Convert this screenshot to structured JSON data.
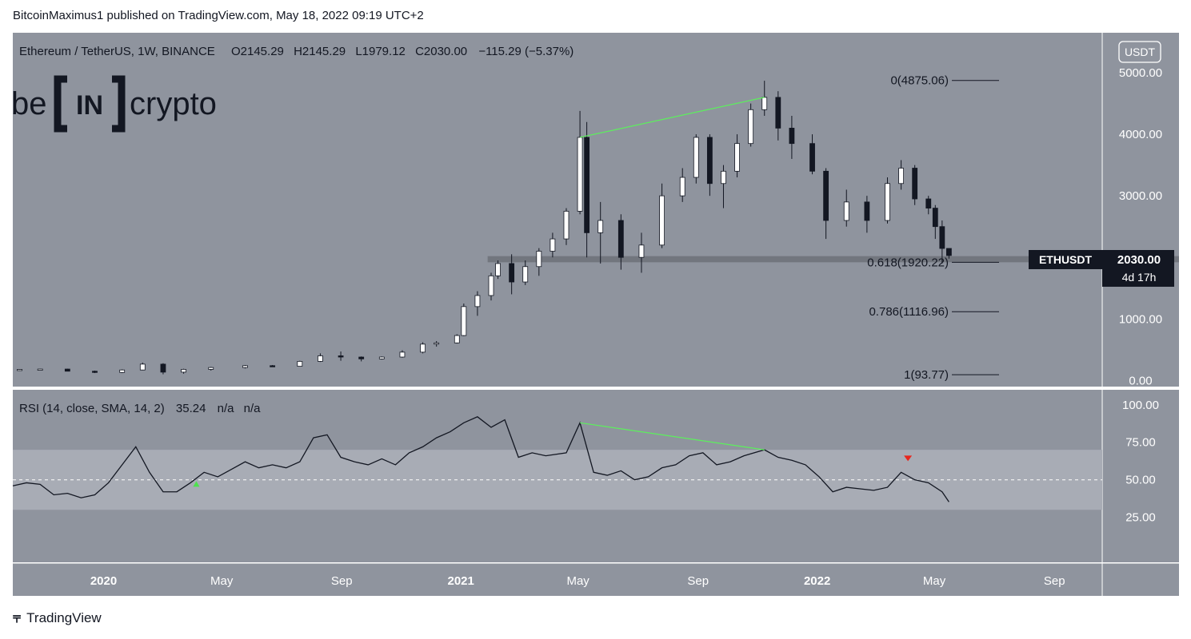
{
  "publisher_line": "BitcoinMaximus1 published on TradingView.com, May 18, 2022 09:19 UTC+2",
  "legend": {
    "symbol": "Ethereum / TetherUS, 1W, BINANCE",
    "o_label": "O",
    "o_value": "2145.29",
    "h_label": "H",
    "h_value": "2145.29",
    "l_label": "L",
    "l_value": "1979.12",
    "c_label": "C",
    "c_value": "2030.00",
    "change": "−115.29 (−5.37%)"
  },
  "watermark": {
    "be": "be",
    "in": "IN",
    "crypto": "crypto"
  },
  "currency_button": "USDT",
  "price_tag": {
    "symbol": "ETHUSDT",
    "price": "2030.00",
    "countdown": "4d 17h"
  },
  "footer": {
    "brand": "TradingView",
    "logo_icon": "tradingview-logo-icon"
  },
  "colors": {
    "panel_bg": "#8f949e",
    "band_bg": "#a8acb5",
    "up": "#ffffff",
    "down": "#131722",
    "divergence": "#5cf05c",
    "signal_down": "#e8271e",
    "signal_up": "#4de34d"
  },
  "chart_data": [
    {
      "type": "candlestick",
      "title": "Ethereum / TetherUS, 1W, BINANCE",
      "x_tick_labels": [
        "2020",
        "May",
        "Sep",
        "2021",
        "May",
        "Sep",
        "2022",
        "May",
        "Sep"
      ],
      "x_tick_dates": [
        "2020-01-01",
        "2020-05-01",
        "2020-09-01",
        "2021-01-01",
        "2021-05-01",
        "2021-09-01",
        "2022-01-01",
        "2022-05-01",
        "2022-09-01"
      ],
      "x_range": [
        "2019-09-30",
        "2022-10-20"
      ],
      "y_tick_labels": [
        "5000.00",
        "4000.00",
        "3000.00",
        "1000.00",
        "0.00"
      ],
      "y_ticks": [
        5000,
        4000,
        3000,
        1000,
        0
      ],
      "ylim": [
        -100,
        5650
      ],
      "fib_levels": [
        {
          "label": "0(4875.06)",
          "value": 4875.06
        },
        {
          "label": "0.618(1920.22)",
          "value": 1920.22
        },
        {
          "label": "0.786(1116.96)",
          "value": 1116.96
        },
        {
          "label": "1(93.77)",
          "value": 93.77
        }
      ],
      "support_zone": [
        1920,
        2020
      ],
      "candles": [
        [
          "2019-10-07",
          175,
          185,
          165,
          180
        ],
        [
          "2019-10-28",
          180,
          190,
          175,
          185
        ],
        [
          "2019-11-25",
          185,
          190,
          150,
          150
        ],
        [
          "2019-12-23",
          150,
          160,
          120,
          130
        ],
        [
          "2020-01-20",
          130,
          180,
          120,
          170
        ],
        [
          "2020-02-10",
          170,
          290,
          165,
          265
        ],
        [
          "2020-03-02",
          265,
          280,
          100,
          135
        ],
        [
          "2020-03-23",
          135,
          190,
          110,
          180
        ],
        [
          "2020-04-20",
          180,
          220,
          160,
          210
        ],
        [
          "2020-05-25",
          210,
          250,
          195,
          240
        ],
        [
          "2020-06-22",
          240,
          250,
          220,
          230
        ],
        [
          "2020-07-20",
          230,
          320,
          225,
          310
        ],
        [
          "2020-08-10",
          310,
          440,
          300,
          400
        ],
        [
          "2020-08-31",
          400,
          470,
          320,
          380
        ],
        [
          "2020-09-21",
          380,
          390,
          310,
          350
        ],
        [
          "2020-10-12",
          350,
          390,
          340,
          380
        ],
        [
          "2020-11-02",
          380,
          490,
          370,
          460
        ],
        [
          "2020-11-23",
          460,
          620,
          440,
          590
        ],
        [
          "2020-12-07",
          590,
          640,
          550,
          610
        ],
        [
          "2020-12-28",
          610,
          750,
          600,
          730
        ],
        [
          "2021-01-04",
          730,
          1250,
          720,
          1200
        ],
        [
          "2021-01-18",
          1200,
          1450,
          1050,
          1380
        ],
        [
          "2021-02-01",
          1380,
          1750,
          1300,
          1700
        ],
        [
          "2021-02-08",
          1700,
          1950,
          1650,
          1900
        ],
        [
          "2021-02-22",
          1900,
          2050,
          1400,
          1600
        ],
        [
          "2021-03-08",
          1600,
          1950,
          1550,
          1850
        ],
        [
          "2021-03-22",
          1850,
          2150,
          1700,
          2100
        ],
        [
          "2021-04-05",
          2100,
          2400,
          2000,
          2300
        ],
        [
          "2021-04-19",
          2300,
          2800,
          2200,
          2750
        ],
        [
          "2021-05-03",
          2750,
          4380,
          2700,
          3950
        ],
        [
          "2021-05-10",
          3950,
          4200,
          2000,
          2400
        ],
        [
          "2021-05-24",
          2400,
          2900,
          1900,
          2600
        ],
        [
          "2021-06-14",
          2600,
          2700,
          1800,
          2000
        ],
        [
          "2021-07-05",
          2000,
          2400,
          1750,
          2200
        ],
        [
          "2021-07-26",
          2200,
          3200,
          2150,
          3000
        ],
        [
          "2021-08-16",
          3000,
          3450,
          2900,
          3300
        ],
        [
          "2021-08-30",
          3300,
          4000,
          3200,
          3950
        ],
        [
          "2021-09-13",
          3950,
          4000,
          3000,
          3200
        ],
        [
          "2021-09-27",
          3200,
          3500,
          2800,
          3400
        ],
        [
          "2021-10-11",
          3400,
          4000,
          3300,
          3850
        ],
        [
          "2021-10-25",
          3850,
          4500,
          3800,
          4400
        ],
        [
          "2021-11-08",
          4400,
          4870,
          4300,
          4600
        ],
        [
          "2021-11-22",
          4600,
          4700,
          3900,
          4100
        ],
        [
          "2021-12-06",
          4100,
          4300,
          3600,
          3850
        ],
        [
          "2021-12-27",
          3850,
          4000,
          3350,
          3400
        ],
        [
          "2022-01-10",
          3400,
          3450,
          2300,
          2600
        ],
        [
          "2022-01-31",
          2600,
          3100,
          2500,
          2900
        ],
        [
          "2022-02-21",
          2900,
          3000,
          2400,
          2600
        ],
        [
          "2022-03-14",
          2600,
          3300,
          2550,
          3200
        ],
        [
          "2022-03-28",
          3200,
          3580,
          3100,
          3450
        ],
        [
          "2022-04-11",
          3450,
          3500,
          2850,
          2950
        ],
        [
          "2022-04-25",
          2950,
          3000,
          2700,
          2800
        ],
        [
          "2022-05-02",
          2800,
          2850,
          2300,
          2500
        ],
        [
          "2022-05-09",
          2500,
          2600,
          1900,
          2145
        ],
        [
          "2022-05-16",
          2145.29,
          2145.29,
          1979.12,
          2030.0
        ]
      ]
    },
    {
      "type": "line",
      "title": "RSI (14, close, SMA, 14, 2)",
      "last_value": "35.24",
      "extra_values": [
        "n/a",
        "n/a"
      ],
      "y_tick_labels": [
        "100.00",
        "75.00",
        "50.00",
        "25.00"
      ],
      "y_ticks": [
        100,
        75,
        50,
        25
      ],
      "ylim": [
        -5,
        110
      ],
      "bands": {
        "upper": 70,
        "middle": 50,
        "lower": 30
      },
      "series": [
        {
          "x": [
            "2019-09-30",
            "2019-10-14",
            "2019-10-28",
            "2019-11-11",
            "2019-11-25",
            "2019-12-09",
            "2019-12-23",
            "2020-01-06",
            "2020-01-20",
            "2020-02-03",
            "2020-02-17",
            "2020-03-02",
            "2020-03-16",
            "2020-03-30",
            "2020-04-13",
            "2020-04-27",
            "2020-05-11",
            "2020-05-25",
            "2020-06-08",
            "2020-06-22",
            "2020-07-06",
            "2020-07-20",
            "2020-08-03",
            "2020-08-17",
            "2020-08-31",
            "2020-09-14",
            "2020-09-28",
            "2020-10-12",
            "2020-10-26",
            "2020-11-09",
            "2020-11-23",
            "2020-12-07",
            "2020-12-21",
            "2021-01-04",
            "2021-01-18",
            "2021-02-01",
            "2021-02-15",
            "2021-03-01",
            "2021-03-15",
            "2021-03-29",
            "2021-04-19",
            "2021-05-03",
            "2021-05-17",
            "2021-05-31",
            "2021-06-14",
            "2021-06-28",
            "2021-07-12",
            "2021-07-26",
            "2021-08-09",
            "2021-08-23",
            "2021-09-06",
            "2021-09-20",
            "2021-10-04",
            "2021-10-18",
            "2021-11-08",
            "2021-11-22",
            "2021-12-06",
            "2021-12-20",
            "2022-01-03",
            "2022-01-17",
            "2022-01-31",
            "2022-02-14",
            "2022-02-28",
            "2022-03-14",
            "2022-03-28",
            "2022-04-11",
            "2022-04-25",
            "2022-05-09",
            "2022-05-16"
          ],
          "values": [
            46,
            48,
            47,
            40,
            41,
            38,
            40,
            48,
            60,
            72,
            55,
            42,
            42,
            48,
            55,
            52,
            57,
            62,
            58,
            60,
            58,
            62,
            78,
            80,
            65,
            62,
            60,
            64,
            60,
            68,
            72,
            78,
            82,
            88,
            92,
            85,
            90,
            65,
            68,
            66,
            68,
            88,
            55,
            53,
            56,
            50,
            52,
            58,
            60,
            66,
            68,
            60,
            62,
            66,
            70,
            65,
            63,
            60,
            52,
            42,
            45,
            44,
            43,
            45,
            55,
            50,
            48,
            42,
            35.24
          ]
        }
      ],
      "markers": [
        {
          "type": "triangle-up",
          "x": "2020-04-05",
          "y": 47
        },
        {
          "type": "triangle-down",
          "x": "2022-04-04",
          "y": 64
        }
      ]
    }
  ]
}
